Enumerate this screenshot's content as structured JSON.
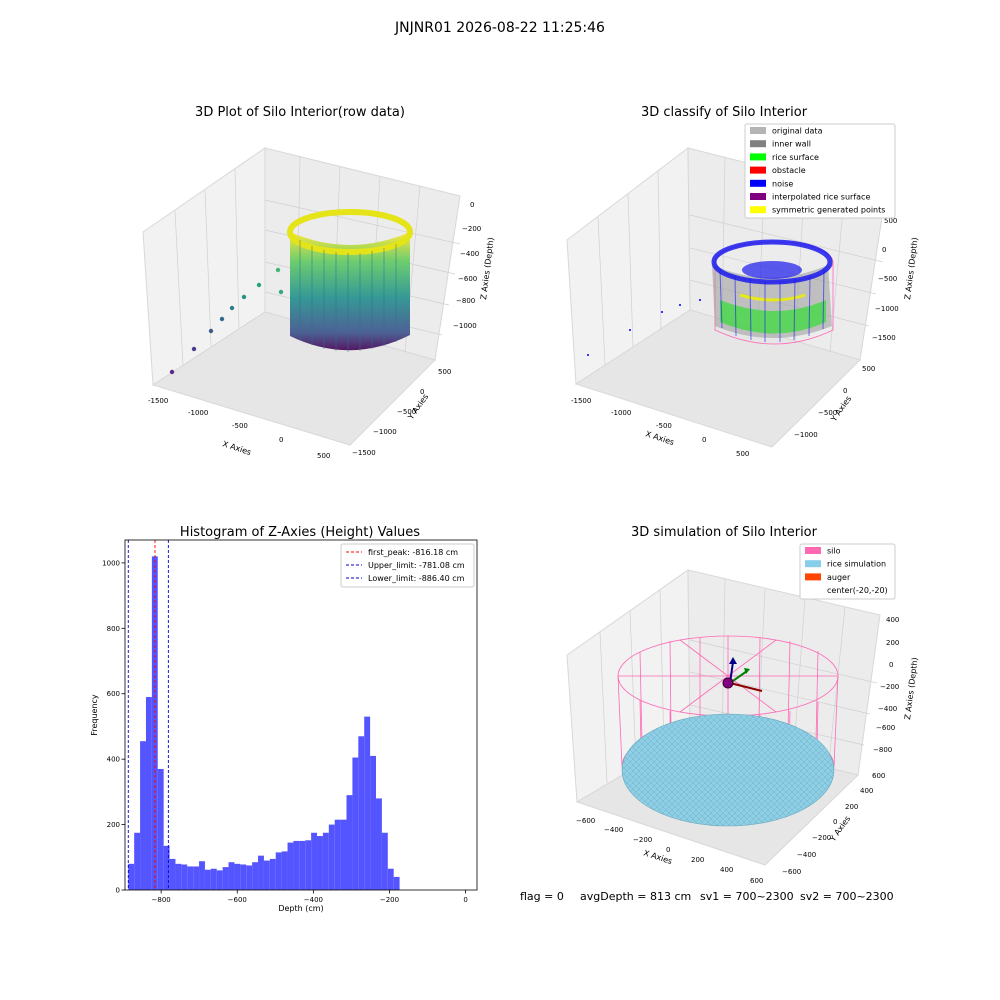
{
  "figure": {
    "suptitle": "JNJNR01 2026-08-22 11:25:46",
    "status": {
      "flag": "flag = 0",
      "avg": "avgDepth = 813 cm",
      "sv1": "sv1 = 700~2300",
      "sv2": "sv2 = 700~2300"
    }
  },
  "chart_data": [
    {
      "type": "scatter",
      "title": "3D Plot of Silo Interior(row data)",
      "xlabel": "X Axies",
      "ylabel": "Y Axies",
      "zlabel": "Z Axies (Depth)",
      "x_ticks": [
        "-1500",
        "-1000",
        "-500",
        "0",
        "500"
      ],
      "y_ticks": [
        "500",
        "0",
        "−500",
        "−1000",
        "−1500"
      ],
      "z_ticks": [
        "0",
        "−200",
        "−400",
        "−600",
        "−800",
        "−1000"
      ],
      "colormap": "viridis"
    },
    {
      "type": "scatter",
      "title": "3D classify of Silo Interior",
      "xlabel": "X Axies",
      "ylabel": "Y Axies",
      "zlabel": "Z Axies (Depth)",
      "x_ticks": [
        "-1500",
        "-1000",
        "-500",
        "0",
        "500"
      ],
      "y_ticks": [
        "500",
        "0",
        "−500",
        "−1000"
      ],
      "z_ticks": [
        "500",
        "0",
        "−500",
        "−1000",
        "−1500"
      ],
      "legend": [
        {
          "label": "original data",
          "color": "#b4b4b4"
        },
        {
          "label": "inner wall",
          "color": "#808080"
        },
        {
          "label": "rice surface",
          "color": "#00ff00"
        },
        {
          "label": "obstacle",
          "color": "#ff0000"
        },
        {
          "label": "noise",
          "color": "#0000ff"
        },
        {
          "label": "interpolated rice surface",
          "color": "#800080"
        },
        {
          "label": "symmetric generated points",
          "color": "#ffff00"
        }
      ]
    },
    {
      "type": "bar",
      "title": "Histogram of Z-Axies (Height) Values",
      "xlabel": "Depth (cm)",
      "ylabel": "Frequency",
      "xlim": [
        -895,
        30
      ],
      "ylim": [
        0,
        1070
      ],
      "x_ticks": [
        -800,
        -600,
        -400,
        -200,
        0
      ],
      "x_tick_labels": [
        "−800",
        "−600",
        "−400",
        "−200",
        "0"
      ],
      "y_ticks": [
        0,
        200,
        400,
        600,
        800,
        1000
      ],
      "bar_color": "#4c4cff",
      "bin_start": -886.4,
      "bin_width": 15.5,
      "values": [
        80,
        175,
        455,
        590,
        1020,
        370,
        135,
        95,
        80,
        78,
        72,
        72,
        88,
        62,
        65,
        60,
        70,
        85,
        80,
        78,
        75,
        85,
        105,
        90,
        95,
        115,
        118,
        145,
        150,
        150,
        152,
        175,
        165,
        175,
        200,
        215,
        215,
        290,
        405,
        470,
        530,
        410,
        280,
        175,
        65,
        40
      ],
      "vlines": [
        {
          "label": "first_peak: -816.18 cm",
          "x": -816.18,
          "color": "#ff0000"
        },
        {
          "label": "Upper_limit: -781.08 cm",
          "x": -781.08,
          "color": "#0000cc"
        },
        {
          "label": "Lower_limit: -886.40 cm",
          "x": -886.4,
          "color": "#0000cc"
        }
      ]
    },
    {
      "type": "scatter",
      "title": "3D simulation of Silo Interior",
      "xlabel": "X Axies",
      "ylabel": "Y Axies",
      "zlabel": "Z Axies (Depth)",
      "x_ticks": [
        "−600",
        "−400",
        "−200",
        "0",
        "200",
        "400",
        "600"
      ],
      "y_ticks": [
        "600",
        "400",
        "200",
        "0",
        "−200",
        "−400",
        "−600"
      ],
      "z_ticks": [
        "400",
        "200",
        "0",
        "−200",
        "−400",
        "−600",
        "−800"
      ],
      "legend": [
        {
          "label": "silo",
          "color": "#ff69b4"
        },
        {
          "label": "rice simulation",
          "color": "#87ceeb"
        },
        {
          "label": "auger",
          "color": "#ff4500"
        },
        {
          "label": "center(-20,-20)",
          "color": "#ffffff"
        }
      ]
    }
  ]
}
